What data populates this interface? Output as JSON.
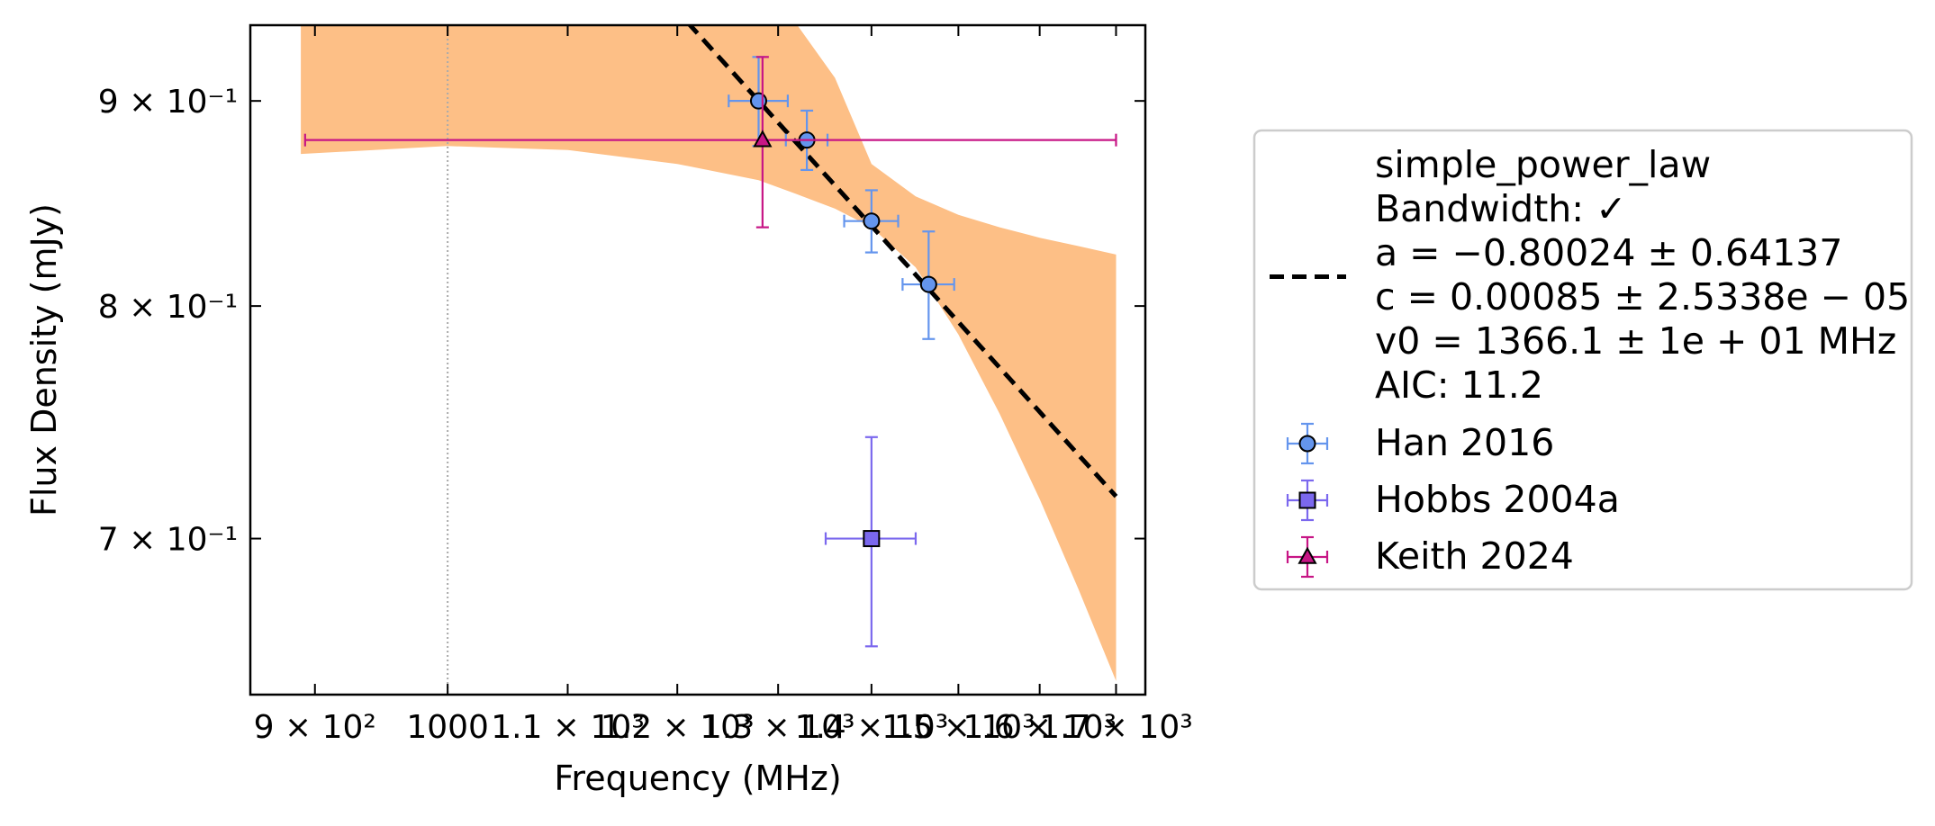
{
  "chart_data": {
    "type": "scatter",
    "xlabel": "Frequency (MHz)",
    "ylabel": "Flux Density (mJy)",
    "x_scale": "log",
    "y_scale": "log",
    "xlim": [
      855,
      1740
    ],
    "ylim": [
      0.64,
      0.94
    ],
    "grid": false,
    "legend_position": "outside-right",
    "x_ticks": [
      {
        "value": 900,
        "label": "9 × 10²"
      },
      {
        "value": 1000,
        "label": "1000"
      },
      {
        "value": 1100,
        "label": "1.1 × 10³"
      },
      {
        "value": 1200,
        "label": "1.2 × 10³"
      },
      {
        "value": 1300,
        "label": "1.3 × 10³"
      },
      {
        "value": 1400,
        "label": "1.4 × 10³"
      },
      {
        "value": 1500,
        "label": "1.5 × 10³"
      },
      {
        "value": 1600,
        "label": "1.6 × 10³"
      },
      {
        "value": 1700,
        "label": "1.7 × 10³"
      }
    ],
    "y_ticks": [
      {
        "value": 0.7,
        "label": "7 × 10⁻¹"
      },
      {
        "value": 0.8,
        "label": "8 × 10⁻¹"
      },
      {
        "value": 0.9,
        "label": "9 × 10⁻¹"
      }
    ],
    "reference_line_x": 1000,
    "fit": {
      "legend_lines": [
        "simple_power_law",
        "Bandwidth: ✓",
        "a = −0.80024 ± 0.64137",
        "c = 0.00085 ± 2.5338e − 05",
        "v0 = 1366.1 ± 1e + 01 MHz",
        "AIC: 11.2"
      ],
      "a": -0.80024,
      "c": 0.00085,
      "v0": 1366.1,
      "color": "#000000",
      "line_style": "dashed",
      "x_range": [
        1210,
        1700
      ],
      "band_color": "#fdbf86",
      "band": {
        "x": [
          890,
          1000,
          1100,
          1200,
          1280,
          1320,
          1360,
          1400,
          1450,
          1500,
          1550,
          1600,
          1650,
          1700
        ],
        "upper": [
          0.94,
          0.94,
          0.94,
          0.94,
          0.94,
          0.94,
          0.912,
          0.868,
          0.852,
          0.843,
          0.837,
          0.832,
          0.828,
          0.824
        ],
        "lower": [
          0.873,
          0.877,
          0.875,
          0.868,
          0.86,
          0.853,
          0.846,
          0.837,
          0.818,
          0.787,
          0.752,
          0.716,
          0.68,
          0.645
        ]
      }
    },
    "series": [
      {
        "name": "Han 2016",
        "marker": "circle",
        "color": "#6495ed",
        "points": [
          {
            "x": 1280,
            "y": 0.9,
            "xerr": 30,
            "yerr": 0.023
          },
          {
            "x": 1330,
            "y": 0.88,
            "xerr": 22,
            "yerr": 0.015
          },
          {
            "x": 1400,
            "y": 0.84,
            "xerr": 30,
            "yerr": 0.015
          },
          {
            "x": 1465,
            "y": 0.81,
            "xerr": 30,
            "yerr": 0.025
          }
        ]
      },
      {
        "name": "Hobbs 2004a",
        "marker": "square",
        "color": "#7b68ee",
        "points": [
          {
            "x": 1400,
            "y": 0.7,
            "xerr": 50,
            "yerr": 0.042
          }
        ]
      },
      {
        "name": "Keith 2024",
        "marker": "triangle",
        "color": "#c71585",
        "points": [
          {
            "x": 1284,
            "y": 0.88,
            "xerr": [
              391,
              416
            ],
            "yerr": 0.043
          }
        ]
      }
    ]
  }
}
